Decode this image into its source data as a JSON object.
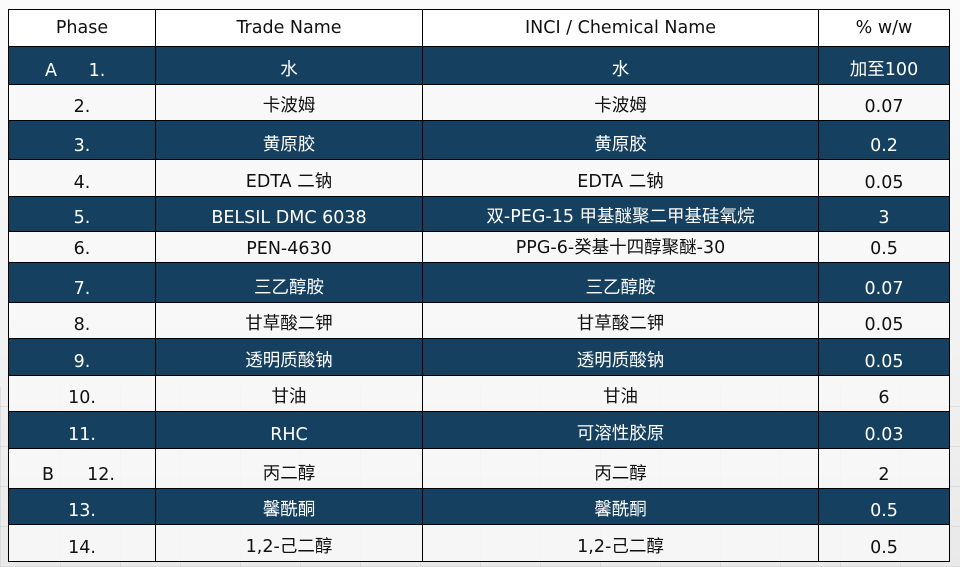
{
  "header": {
    "phase": "Phase",
    "trade": "Trade Name",
    "inci": "INCI / Chemical Name",
    "pct": "% w/w"
  },
  "colors": {
    "dark_row": "#15405f",
    "light_row": "#f8f8f8",
    "border": "#000000"
  },
  "rows": [
    {
      "phase": "A",
      "num": "1.",
      "trade": "水",
      "inci": "水",
      "pct": "加至100"
    },
    {
      "phase": "",
      "num": "2.",
      "trade": "卡波姆",
      "inci": "卡波姆",
      "pct": "0.07"
    },
    {
      "phase": "",
      "num": "3.",
      "trade": "黄原胶",
      "inci": "黄原胶",
      "pct": "0.2"
    },
    {
      "phase": "",
      "num": "4.",
      "trade": "EDTA 二钠",
      "inci": "EDTA 二钠",
      "pct": "0.05"
    },
    {
      "phase": "",
      "num": "5.",
      "trade": "BELSIL DMC 6038",
      "inci": "双-PEG-15 甲基醚聚二甲基硅氧烷",
      "pct": "3"
    },
    {
      "phase": "",
      "num": "6.",
      "trade": "PEN-4630",
      "inci": "PPG-6-癸基十四醇聚醚-30",
      "pct": "0.5"
    },
    {
      "phase": "",
      "num": "7.",
      "trade": "三乙醇胺",
      "inci": "三乙醇胺",
      "pct": "0.07"
    },
    {
      "phase": "",
      "num": "8.",
      "trade": "甘草酸二钾",
      "inci": "甘草酸二钾",
      "pct": "0.05"
    },
    {
      "phase": "",
      "num": "9.",
      "trade": "透明质酸钠",
      "inci": "透明质酸钠",
      "pct": "0.05"
    },
    {
      "phase": "",
      "num": "10.",
      "trade": "甘油",
      "inci": "甘油",
      "pct": "6"
    },
    {
      "phase": "",
      "num": "11.",
      "trade": "RHC",
      "inci": "可溶性胶原",
      "pct": "0.03"
    },
    {
      "phase": "B",
      "num": "12.",
      "trade": "丙二醇",
      "inci": "丙二醇",
      "pct": "2"
    },
    {
      "phase": "",
      "num": "13.",
      "trade": "馨酰酮",
      "inci": "馨酰酮",
      "pct": "0.5"
    },
    {
      "phase": "",
      "num": "14.",
      "trade": "1,2-己二醇",
      "inci": "1,2-己二醇",
      "pct": "0.5"
    }
  ]
}
